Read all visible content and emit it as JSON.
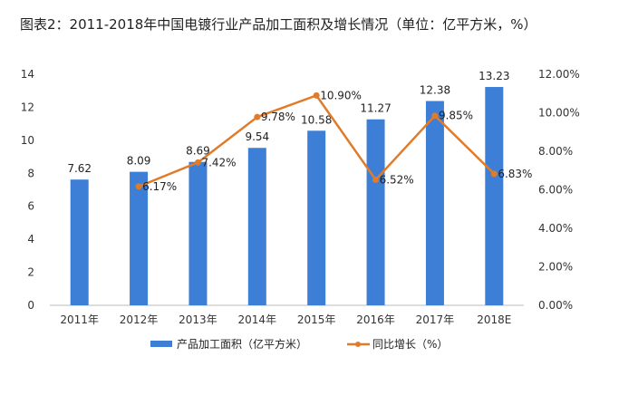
{
  "title": "图表2：2011-2018年中国电镀行业产品加工面积及增长情况（单位：亿平方米，%）",
  "chart_data": {
    "type": "bar+line",
    "categories": [
      "2011年",
      "2012年",
      "2013年",
      "2014年",
      "2015年",
      "2016年",
      "2017年",
      "2018E"
    ],
    "series": [
      {
        "name": "产品加工面积（亿平方米）",
        "type": "bar",
        "axis": "left",
        "color": "#3d7fd6",
        "values": [
          7.62,
          8.09,
          8.69,
          9.54,
          10.58,
          11.27,
          12.38,
          13.23
        ],
        "labels": [
          "7.62",
          "8.09",
          "8.69",
          "9.54",
          "10.58",
          "11.27",
          "12.38",
          "13.23"
        ]
      },
      {
        "name": "同比增长（%）",
        "type": "line",
        "axis": "right",
        "color": "#e07b2a",
        "values": [
          null,
          6.17,
          7.42,
          9.78,
          10.9,
          6.52,
          9.85,
          6.83
        ],
        "labels": [
          "",
          "6.17%",
          "7.42%",
          "9.78%",
          "10.90%",
          "6.52%",
          "9.85%",
          "6.83%"
        ]
      }
    ],
    "yleft": {
      "range": [
        0,
        14
      ],
      "ticks": [
        "0",
        "2",
        "4",
        "6",
        "8",
        "10",
        "12",
        "14"
      ]
    },
    "yright": {
      "range": [
        0,
        12
      ],
      "ticks": [
        "0.00%",
        "2.00%",
        "4.00%",
        "6.00%",
        "8.00%",
        "10.00%",
        "12.00%"
      ]
    },
    "grid": false,
    "legend": "bottom"
  }
}
